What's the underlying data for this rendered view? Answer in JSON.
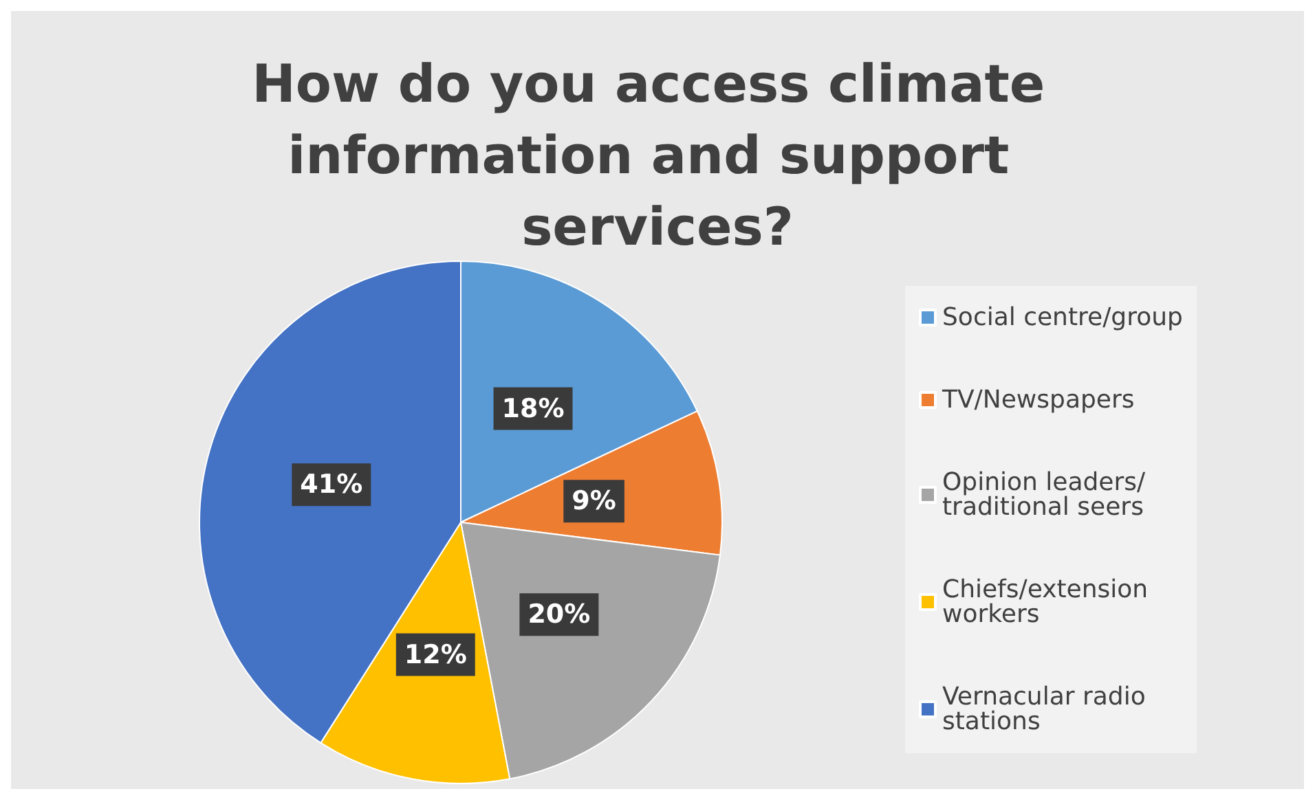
{
  "chart_data": {
    "type": "pie",
    "title": "How do you access climate information and support services?",
    "categories": [
      "Social centre/group",
      "TV/Newspapers",
      "Opinion leaders/traditional seers",
      "Chiefs/extension workers",
      "Vernacular radio stations"
    ],
    "values": [
      18,
      9,
      20,
      12,
      41
    ],
    "value_labels": [
      "18%",
      "9%",
      "20%",
      "12%",
      "41%"
    ],
    "colors": [
      "#5b9bd5",
      "#ed7d31",
      "#a5a5a5",
      "#ffc000",
      "#4472c4"
    ],
    "legend": "right"
  }
}
